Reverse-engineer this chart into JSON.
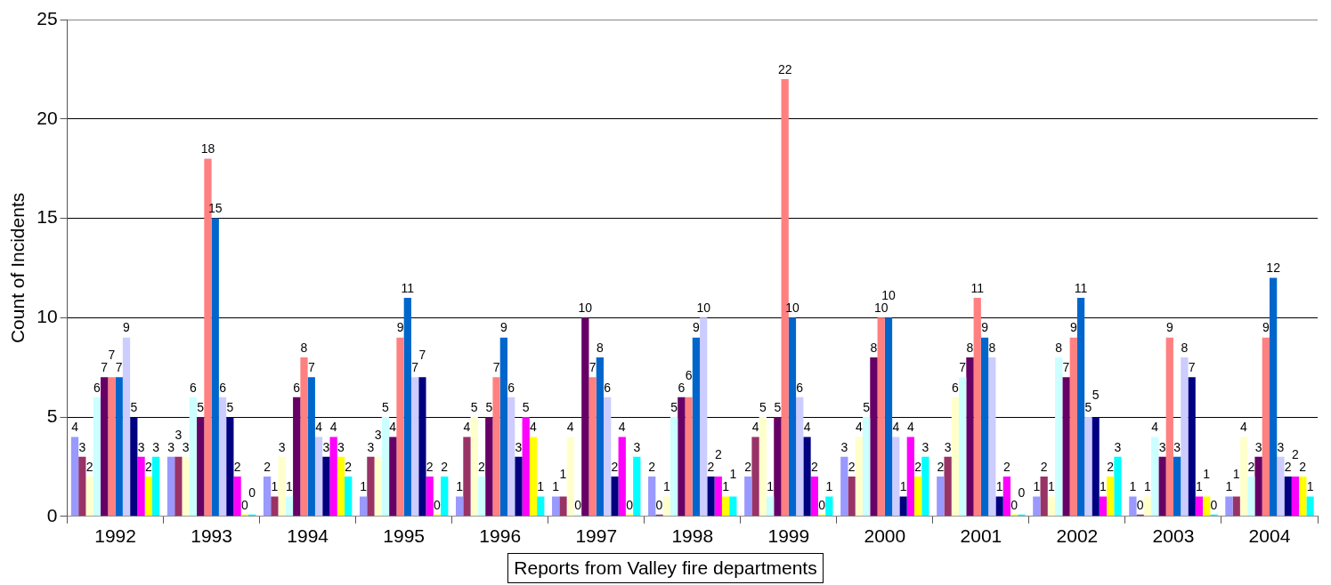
{
  "chart_data": {
    "type": "bar",
    "xlabel": "Reports from Valley fire departments",
    "ylabel": "Count of Incidents",
    "categories": [
      "1992",
      "1993",
      "1994",
      "1995",
      "1996",
      "1997",
      "1998",
      "1999",
      "2000",
      "2001",
      "2002",
      "2003",
      "2004"
    ],
    "series": [
      {
        "color": "#9999ff",
        "values": [
          4,
          3,
          2,
          1,
          1,
          1,
          2,
          2,
          3,
          2,
          1,
          1,
          1
        ]
      },
      {
        "color": "#993366",
        "values": [
          3,
          3,
          1,
          3,
          4,
          1,
          0,
          4,
          2,
          3,
          2,
          0,
          1
        ]
      },
      {
        "color": "#ffffcc",
        "values": [
          2,
          3,
          3,
          3,
          5,
          4,
          1,
          5,
          4,
          6,
          1,
          1,
          4
        ]
      },
      {
        "color": "#ccffff",
        "values": [
          6,
          6,
          1,
          5,
          2,
          0,
          5,
          1,
          5,
          7,
          8,
          4,
          2
        ]
      },
      {
        "color": "#660066",
        "values": [
          7,
          5,
          6,
          4,
          5,
          10,
          6,
          5,
          8,
          8,
          7,
          3,
          3
        ]
      },
      {
        "color": "#ff8080",
        "values": [
          7,
          18,
          8,
          9,
          7,
          7,
          6,
          22,
          10,
          11,
          9,
          9,
          9
        ]
      },
      {
        "color": "#0066cc",
        "values": [
          7,
          15,
          7,
          11,
          9,
          8,
          9,
          10,
          10,
          9,
          11,
          3,
          12
        ]
      },
      {
        "color": "#ccccff",
        "values": [
          9,
          6,
          4,
          7,
          6,
          6,
          10,
          6,
          4,
          8,
          5,
          8,
          3
        ]
      },
      {
        "color": "#000080",
        "values": [
          5,
          5,
          3,
          7,
          3,
          2,
          2,
          4,
          1,
          1,
          5,
          7,
          2
        ]
      },
      {
        "color": "#ff00ff",
        "values": [
          3,
          2,
          4,
          2,
          5,
          4,
          2,
          2,
          4,
          2,
          1,
          1,
          2
        ]
      },
      {
        "color": "#ffff00",
        "values": [
          2,
          0,
          3,
          0,
          4,
          0,
          1,
          0,
          2,
          0,
          2,
          1,
          2
        ]
      },
      {
        "color": "#00ffff",
        "values": [
          3,
          0,
          2,
          2,
          1,
          3,
          1,
          1,
          3,
          0,
          3,
          0,
          1
        ]
      }
    ],
    "ylim": [
      0,
      25
    ],
    "yticks": [
      0,
      5,
      10,
      15,
      20,
      25
    ],
    "grid": "y",
    "legend": false,
    "data_labels": true
  }
}
